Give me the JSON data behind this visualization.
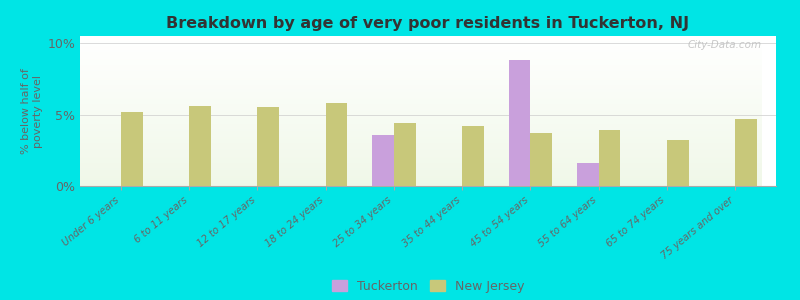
{
  "title": "Breakdown by age of very poor residents in Tuckerton, NJ",
  "ylabel": "% below half of\npoverty level",
  "categories": [
    "Under 6 years",
    "6 to 11 years",
    "12 to 17 years",
    "18 to 24 years",
    "25 to 34 years",
    "35 to 44 years",
    "45 to 54 years",
    "55 to 64 years",
    "65 to 74 years",
    "75 years and over"
  ],
  "tuckerton": [
    0,
    0,
    0,
    0,
    3.6,
    0,
    8.8,
    1.6,
    0,
    0
  ],
  "new_jersey": [
    5.2,
    5.6,
    5.5,
    5.8,
    4.4,
    4.2,
    3.7,
    3.9,
    3.2,
    4.7
  ],
  "tuckerton_color": "#c9a0dc",
  "new_jersey_color": "#c8c87a",
  "background_outer": "#00e5e5",
  "title_color": "#333333",
  "axis_label_color": "#666666",
  "tick_label_color": "#666666",
  "ylim": [
    0,
    10.5
  ],
  "yticks": [
    0,
    5,
    10
  ],
  "ytick_labels": [
    "0%",
    "5%",
    "10%"
  ],
  "bar_width": 0.32,
  "legend_tuckerton": "Tuckerton",
  "legend_new_jersey": "New Jersey",
  "watermark": "City-Data.com"
}
